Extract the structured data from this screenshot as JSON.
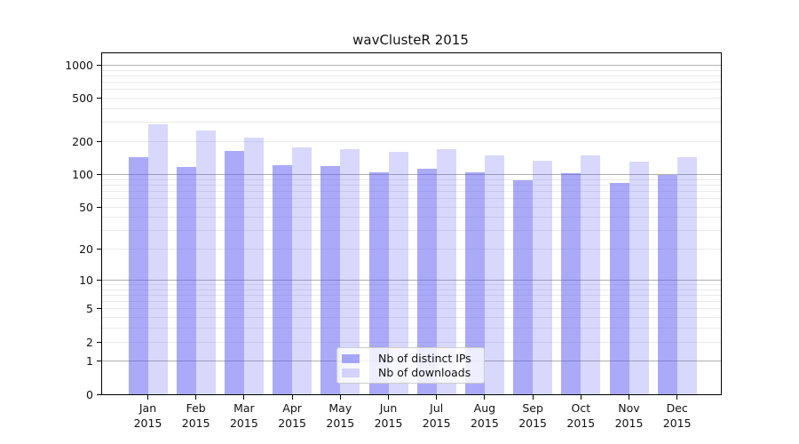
{
  "chart_data": {
    "type": "bar",
    "title": "wavClusteR 2015",
    "categories": [
      "Jan 2015",
      "Feb 2015",
      "Mar 2015",
      "Apr 2015",
      "May 2015",
      "Jun 2015",
      "Jul 2015",
      "Aug 2015",
      "Sep 2015",
      "Oct 2015",
      "Nov 2015",
      "Dec 2015"
    ],
    "series": [
      {
        "name": "Nb of distinct IPs",
        "color": "rgba(85,85,243,0.5)",
        "values": [
          145,
          118,
          165,
          121,
          120,
          104,
          114,
          104,
          88,
          102,
          83,
          100
        ]
      },
      {
        "name": "Nb of downloads",
        "color": "rgba(85,85,243,0.23)",
        "values": [
          290,
          254,
          220,
          176,
          172,
          163,
          170,
          149,
          135,
          151,
          131,
          145
        ]
      }
    ],
    "xlabel": "",
    "ylabel": "",
    "yscale": "log1p",
    "ylim": [
      0,
      1290
    ],
    "yticks": [
      0,
      1,
      2,
      5,
      10,
      20,
      50,
      100,
      200,
      500,
      1000
    ],
    "grid": {
      "major": [
        1,
        10,
        100,
        1000
      ],
      "minor": [
        2,
        3,
        4,
        5,
        6,
        7,
        8,
        9,
        20,
        30,
        40,
        50,
        60,
        70,
        80,
        90,
        200,
        300,
        400,
        500,
        600,
        700,
        800,
        900
      ]
    },
    "legend_position": "lower-center"
  },
  "colors": {
    "background": "#ffffff",
    "axis": "#000000",
    "text": "#111111",
    "grid_major": "#b0b0b0",
    "grid_minor": "#eaeaea",
    "legend_bg": "rgba(255,255,255,0.8)",
    "legend_border": "#cccccc"
  }
}
